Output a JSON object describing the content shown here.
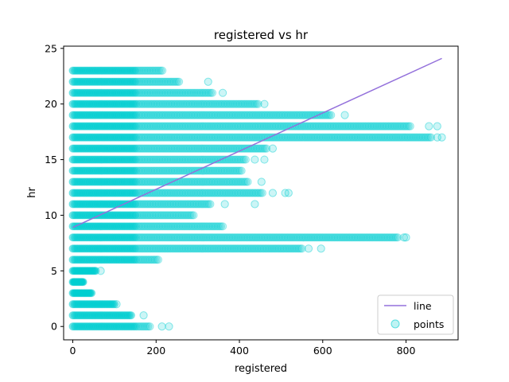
{
  "chart_data": {
    "type": "scatter",
    "title": "registered vs hr",
    "xlabel": "registered",
    "ylabel": "hr",
    "xlim": [
      -22,
      925
    ],
    "ylim": [
      -1.2,
      25.2
    ],
    "xticks": [
      0,
      200,
      400,
      600,
      800
    ],
    "yticks": [
      0,
      5,
      10,
      15,
      20,
      25
    ],
    "grid": false,
    "legend": {
      "position": "lower-right",
      "entries": [
        "line",
        "points"
      ]
    },
    "colors": {
      "points": "#00CED1",
      "line": "#9370DB"
    },
    "line": {
      "name": "line",
      "x": [
        0,
        886
      ],
      "y": [
        8.9,
        24.1
      ]
    },
    "points": {
      "name": "points",
      "ranges_by_hour": [
        {
          "hr": 0,
          "x_min": 0,
          "x_max": 185,
          "outliers": [
            214,
            231
          ]
        },
        {
          "hr": 1,
          "x_min": 0,
          "x_max": 140,
          "outliers": [
            170
          ]
        },
        {
          "hr": 2,
          "x_min": 0,
          "x_max": 100,
          "outliers": [
            105
          ]
        },
        {
          "hr": 3,
          "x_min": 0,
          "x_max": 45,
          "outliers": []
        },
        {
          "hr": 4,
          "x_min": 0,
          "x_max": 25,
          "outliers": []
        },
        {
          "hr": 5,
          "x_min": 0,
          "x_max": 55,
          "outliers": [
            67
          ]
        },
        {
          "hr": 6,
          "x_min": 0,
          "x_max": 205,
          "outliers": []
        },
        {
          "hr": 7,
          "x_min": 0,
          "x_max": 550,
          "outliers": [
            566,
            596
          ]
        },
        {
          "hr": 8,
          "x_min": 0,
          "x_max": 780,
          "outliers": [
            795,
            800
          ]
        },
        {
          "hr": 9,
          "x_min": 0,
          "x_max": 360,
          "outliers": []
        },
        {
          "hr": 10,
          "x_min": 0,
          "x_max": 290,
          "outliers": []
        },
        {
          "hr": 11,
          "x_min": 0,
          "x_max": 330,
          "outliers": [
            365,
            437
          ]
        },
        {
          "hr": 12,
          "x_min": 0,
          "x_max": 455,
          "outliers": [
            480,
            510,
            518
          ]
        },
        {
          "hr": 13,
          "x_min": 0,
          "x_max": 420,
          "outliers": [
            453
          ]
        },
        {
          "hr": 14,
          "x_min": 0,
          "x_max": 405,
          "outliers": []
        },
        {
          "hr": 15,
          "x_min": 0,
          "x_max": 415,
          "outliers": [
            437,
            460
          ]
        },
        {
          "hr": 16,
          "x_min": 0,
          "x_max": 465,
          "outliers": [
            480
          ]
        },
        {
          "hr": 17,
          "x_min": 0,
          "x_max": 860,
          "outliers": [
            875,
            886
          ]
        },
        {
          "hr": 18,
          "x_min": 0,
          "x_max": 810,
          "outliers": [
            855,
            875
          ]
        },
        {
          "hr": 19,
          "x_min": 0,
          "x_max": 620,
          "outliers": [
            653
          ]
        },
        {
          "hr": 20,
          "x_min": 0,
          "x_max": 445,
          "outliers": [
            460
          ]
        },
        {
          "hr": 21,
          "x_min": 0,
          "x_max": 335,
          "outliers": [
            360
          ]
        },
        {
          "hr": 22,
          "x_min": 0,
          "x_max": 255,
          "outliers": [
            325
          ]
        },
        {
          "hr": 23,
          "x_min": 0,
          "x_max": 215,
          "outliers": []
        }
      ]
    }
  }
}
